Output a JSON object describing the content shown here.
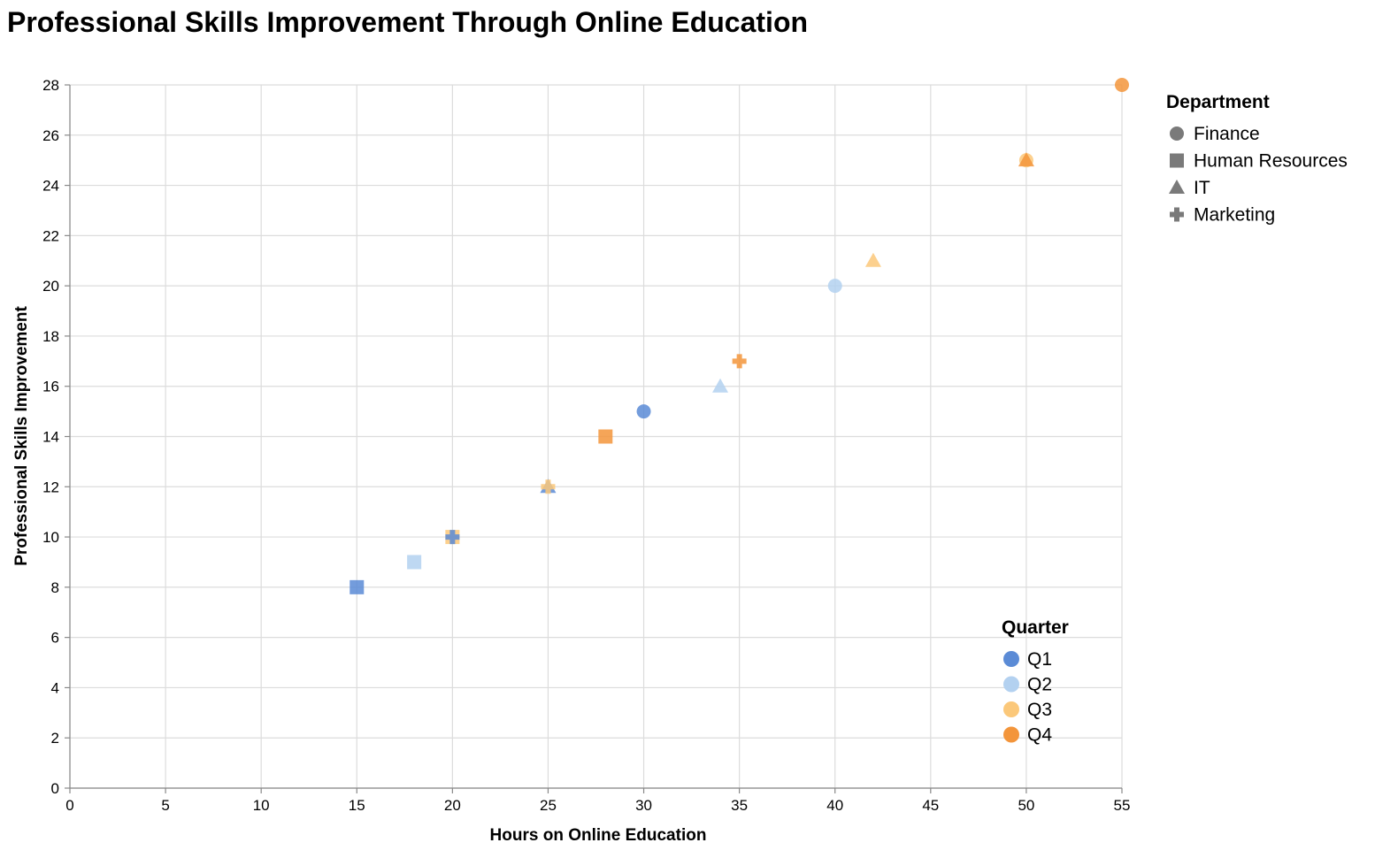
{
  "chart_data": {
    "type": "scatter",
    "title": "Professional Skills Improvement Through Online Education",
    "xlabel": "Hours on Online Education",
    "ylabel": "Professional Skills Improvement",
    "xlim": [
      0,
      55
    ],
    "ylim": [
      0,
      28
    ],
    "x_ticks": [
      0,
      5,
      10,
      15,
      20,
      25,
      30,
      35,
      40,
      45,
      50,
      55
    ],
    "y_ticks": [
      0,
      2,
      4,
      6,
      8,
      10,
      12,
      14,
      16,
      18,
      20,
      22,
      24,
      26,
      28
    ],
    "grid": true,
    "legends": {
      "department": {
        "title": "Department",
        "placement": "top-right",
        "items": [
          {
            "label": "Finance",
            "shape": "circle"
          },
          {
            "label": "Human Resources",
            "shape": "square"
          },
          {
            "label": "IT",
            "shape": "triangle"
          },
          {
            "label": "Marketing",
            "shape": "cross"
          }
        ]
      },
      "quarter": {
        "title": "Quarter",
        "placement": "bottom-right",
        "items": [
          {
            "label": "Q1",
            "color": "#5b8bd6"
          },
          {
            "label": "Q2",
            "color": "#b3d1f0"
          },
          {
            "label": "Q3",
            "color": "#fbc87a"
          },
          {
            "label": "Q4",
            "color": "#f3953b"
          }
        ]
      }
    },
    "points": [
      {
        "x": 30,
        "y": 15,
        "department": "Finance",
        "quarter": "Q1"
      },
      {
        "x": 40,
        "y": 20,
        "department": "Finance",
        "quarter": "Q2"
      },
      {
        "x": 50,
        "y": 25,
        "department": "Finance",
        "quarter": "Q3"
      },
      {
        "x": 55,
        "y": 28,
        "department": "Finance",
        "quarter": "Q4"
      },
      {
        "x": 15,
        "y": 8,
        "department": "Human Resources",
        "quarter": "Q1"
      },
      {
        "x": 18,
        "y": 9,
        "department": "Human Resources",
        "quarter": "Q2"
      },
      {
        "x": 20,
        "y": 10,
        "department": "Human Resources",
        "quarter": "Q3"
      },
      {
        "x": 28,
        "y": 14,
        "department": "Human Resources",
        "quarter": "Q4"
      },
      {
        "x": 25,
        "y": 12,
        "department": "IT",
        "quarter": "Q1"
      },
      {
        "x": 34,
        "y": 16,
        "department": "IT",
        "quarter": "Q2"
      },
      {
        "x": 42,
        "y": 21,
        "department": "IT",
        "quarter": "Q3"
      },
      {
        "x": 50,
        "y": 25,
        "department": "IT",
        "quarter": "Q4"
      },
      {
        "x": 20,
        "y": 10,
        "department": "Marketing",
        "quarter": "Q1"
      },
      {
        "x": 25,
        "y": 12,
        "department": "Marketing",
        "quarter": "Q3"
      },
      {
        "x": 35,
        "y": 17,
        "department": "Marketing",
        "quarter": "Q4"
      }
    ]
  }
}
